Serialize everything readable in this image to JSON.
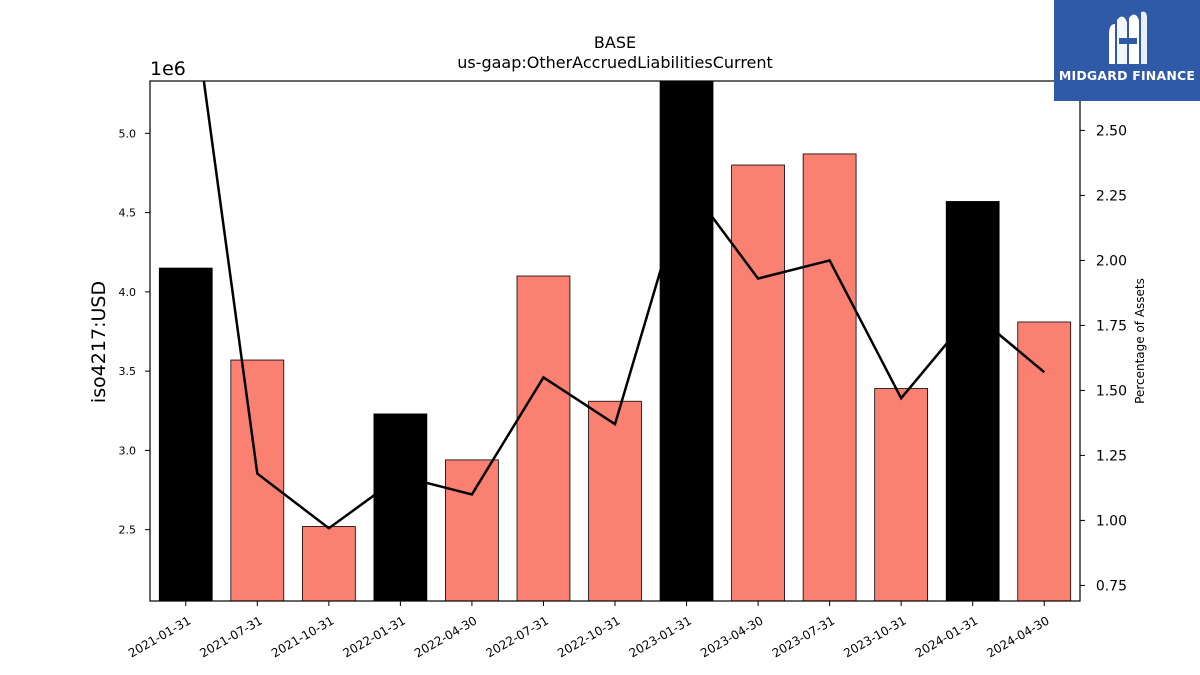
{
  "chart_data": {
    "type": "bar",
    "title": "BASE",
    "subtitle": "us-gaap:OtherAccruedLiabilitiesCurrent",
    "ylabel": "iso4217:USD",
    "y_offset_label": "1e6",
    "y2label": "Percentage of Assets",
    "categories": [
      "2021-01-31",
      "2021-07-31",
      "2021-10-31",
      "2022-01-31",
      "2022-04-30",
      "2022-07-31",
      "2022-10-31",
      "2023-01-31",
      "2023-04-30",
      "2023-07-31",
      "2023-10-31",
      "2024-01-31",
      "2024-04-30"
    ],
    "series": [
      {
        "values": [
          4.15,
          3.57,
          2.52,
          3.23,
          2.94,
          4.1,
          3.31,
          5.4,
          4.8,
          4.87,
          3.39,
          4.57,
          3.81
        ],
        "colors": [
          "#000000",
          "#fa8072",
          "#fa8072",
          "#000000",
          "#fa8072",
          "#fa8072",
          "#fa8072",
          "#000000",
          "#fa8072",
          "#fa8072",
          "#fa8072",
          "#000000",
          "#fa8072"
        ]
      },
      {
        "type": "line",
        "axis": "right",
        "color": "#000000",
        "values": [
          3.2,
          1.18,
          0.97,
          1.17,
          1.1,
          1.55,
          1.37,
          2.3,
          1.93,
          2.0,
          1.47,
          1.8,
          1.57
        ]
      }
    ],
    "ylim": [
      2.05,
      5.33
    ],
    "y2lim": [
      0.69,
      2.69
    ],
    "yticks": [
      "2.5",
      "3.0",
      "3.5",
      "4.0",
      "4.5",
      "5.0"
    ],
    "y2ticks": [
      "0.75",
      "1.00",
      "1.25",
      "1.50",
      "1.75",
      "2.00",
      "2.25",
      "2.50"
    ],
    "grid": false,
    "legend": "none"
  },
  "logo": {
    "text": "MIDGARD FINANCE",
    "color": "#2f5aa8"
  }
}
